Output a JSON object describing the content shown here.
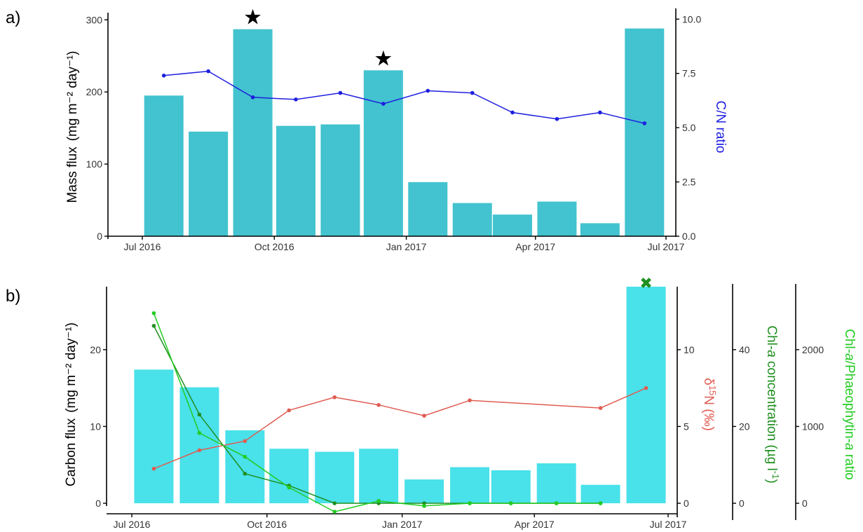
{
  "panels": [
    {
      "label": "a)"
    },
    {
      "label": "b)"
    }
  ],
  "colors": {
    "bars_a": "#42c3cf",
    "bars_b": "#49e1ea",
    "cn_line": "#1f1fe0",
    "d15n_line": "#e05c52",
    "chla_conc_line": "#1f8f1f",
    "chla_ratio_line": "#22cc22",
    "cross_marker": "#1f8f1f"
  },
  "chart_data": [
    {
      "type": "bar",
      "panel": "a)",
      "x_axis": {
        "ticks": [
          "Jul 2016",
          "Oct 2016",
          "Jan 2017",
          "Apr 2017",
          "Jul 2017"
        ]
      },
      "bars": {
        "name": "Mass flux",
        "dates": [
          "2016-07-16",
          "2016-08-16",
          "2016-09-16",
          "2016-10-16",
          "2016-11-16",
          "2016-12-16",
          "2017-01-16",
          "2017-02-16",
          "2017-03-16",
          "2017-04-16",
          "2017-05-16",
          "2017-06-16"
        ],
        "values": [
          195,
          145,
          287,
          153,
          155,
          230,
          75,
          46,
          30,
          48,
          18,
          288
        ]
      },
      "left_axis": {
        "ticks": [
          "0",
          "100",
          "200",
          "300"
        ],
        "title_main": "Mass flux",
        "title_unit": "(mg m⁻² day⁻¹)",
        "ylim": [
          0,
          310
        ]
      },
      "right_axis": {
        "ticks": [
          "0.0",
          "2.5",
          "5.0",
          "7.5",
          "10.0"
        ],
        "title": "C/N ratio",
        "ylim": [
          0,
          10.3
        ]
      },
      "series": [
        {
          "name": "C/N ratio",
          "axis": "right",
          "dates": [
            "2016-07-16",
            "2016-08-16",
            "2016-09-16",
            "2016-10-16",
            "2016-11-16",
            "2016-12-16",
            "2017-01-16",
            "2017-02-16",
            "2017-03-16",
            "2017-04-16",
            "2017-05-16",
            "2017-06-16"
          ],
          "values": [
            7.4,
            7.6,
            6.4,
            6.3,
            6.6,
            6.1,
            6.7,
            6.6,
            5.7,
            5.4,
            5.7,
            5.2
          ]
        }
      ],
      "markers": [
        {
          "symbol": "★",
          "date": "2016-09-16",
          "value": 287
        },
        {
          "symbol": "★",
          "date": "2016-12-16",
          "value": 230
        }
      ]
    },
    {
      "type": "bar",
      "panel": "b)",
      "x_axis": {
        "ticks": [
          "Jul 2016",
          "Oct 2016",
          "Jan 2017",
          "Apr 2017",
          "Jul 2017"
        ]
      },
      "bars": {
        "name": "Carbon flux",
        "dates": [
          "2016-07-16",
          "2016-08-16",
          "2016-09-16",
          "2016-10-16",
          "2016-11-16",
          "2016-12-16",
          "2017-01-16",
          "2017-02-16",
          "2017-03-16",
          "2017-04-16",
          "2017-05-16",
          "2017-06-16"
        ],
        "values": [
          17.4,
          15.1,
          9.5,
          7.1,
          6.7,
          7.1,
          3.1,
          4.7,
          4.3,
          5.2,
          2.4,
          28.2
        ]
      },
      "left_axis": {
        "ticks": [
          "0",
          "10",
          "20"
        ],
        "title_main": "Carbon flux",
        "title_unit": "(mg m⁻² day⁻¹)",
        "ylim": [
          0,
          28.2
        ]
      },
      "right_axes": [
        {
          "ticks": [
            "0",
            "5",
            "10"
          ],
          "title_main": "δ",
          "title_sup": "15",
          "title_rest": "N (‰)",
          "ylim": [
            0,
            14.1
          ]
        },
        {
          "ticks": [
            "0",
            "20",
            "40"
          ],
          "title_pre": "Chl-",
          "title_italic": "a",
          "title_post": " concentration (µg l",
          "title_sup": "-1",
          "title_end": ")",
          "ylim": [
            0,
            56.4
          ]
        },
        {
          "ticks": [
            "0",
            "1000",
            "2000"
          ],
          "title_pre": "Chl-",
          "title_italic": "a",
          "title_mid": "/Phaeophytin-",
          "title_italic2": "a",
          "title_post": " ratio",
          "ylim": [
            0,
            2820
          ]
        }
      ],
      "series": [
        {
          "name": "δ15N (‰)",
          "axis": 0,
          "dates": [
            "2016-07-16",
            "2016-08-16",
            "2016-09-16",
            "2016-10-16",
            "2016-11-16",
            "2016-12-16",
            "2017-01-16",
            "2017-02-16",
            "2017-05-16",
            "2017-06-16"
          ],
          "values": [
            2.25,
            3.45,
            4.05,
            6.05,
            6.9,
            6.4,
            5.7,
            6.7,
            6.2,
            7.5
          ]
        },
        {
          "name": "Chl-a concentration (µg l-1)",
          "axis": 1,
          "dates": [
            "2016-07-16",
            "2016-08-16",
            "2016-09-16",
            "2016-10-16",
            "2016-11-16",
            "2016-12-16",
            "2017-01-16",
            "2017-02-16",
            "2017-03-16",
            "2017-04-16",
            "2017-05-16"
          ],
          "values": [
            46.2,
            23.1,
            7.7,
            4.6,
            0,
            0,
            0,
            0,
            0,
            0,
            0
          ]
        },
        {
          "name": "Chl-a/Phaeophytin-a ratio",
          "axis": 2,
          "dates": [
            "2016-07-16",
            "2016-08-16",
            "2016-09-16",
            "2016-10-16",
            "2016-11-16",
            "2016-12-16",
            "2017-01-16",
            "2017-02-16",
            "2017-03-16",
            "2017-04-16",
            "2017-05-16"
          ],
          "values": [
            2475,
            915,
            605,
            205,
            -110,
            30,
            -35,
            0,
            0,
            0,
            0
          ]
        }
      ],
      "markers": [
        {
          "symbol": "✖",
          "date": "2017-06-16",
          "value": 28.6
        }
      ]
    }
  ]
}
